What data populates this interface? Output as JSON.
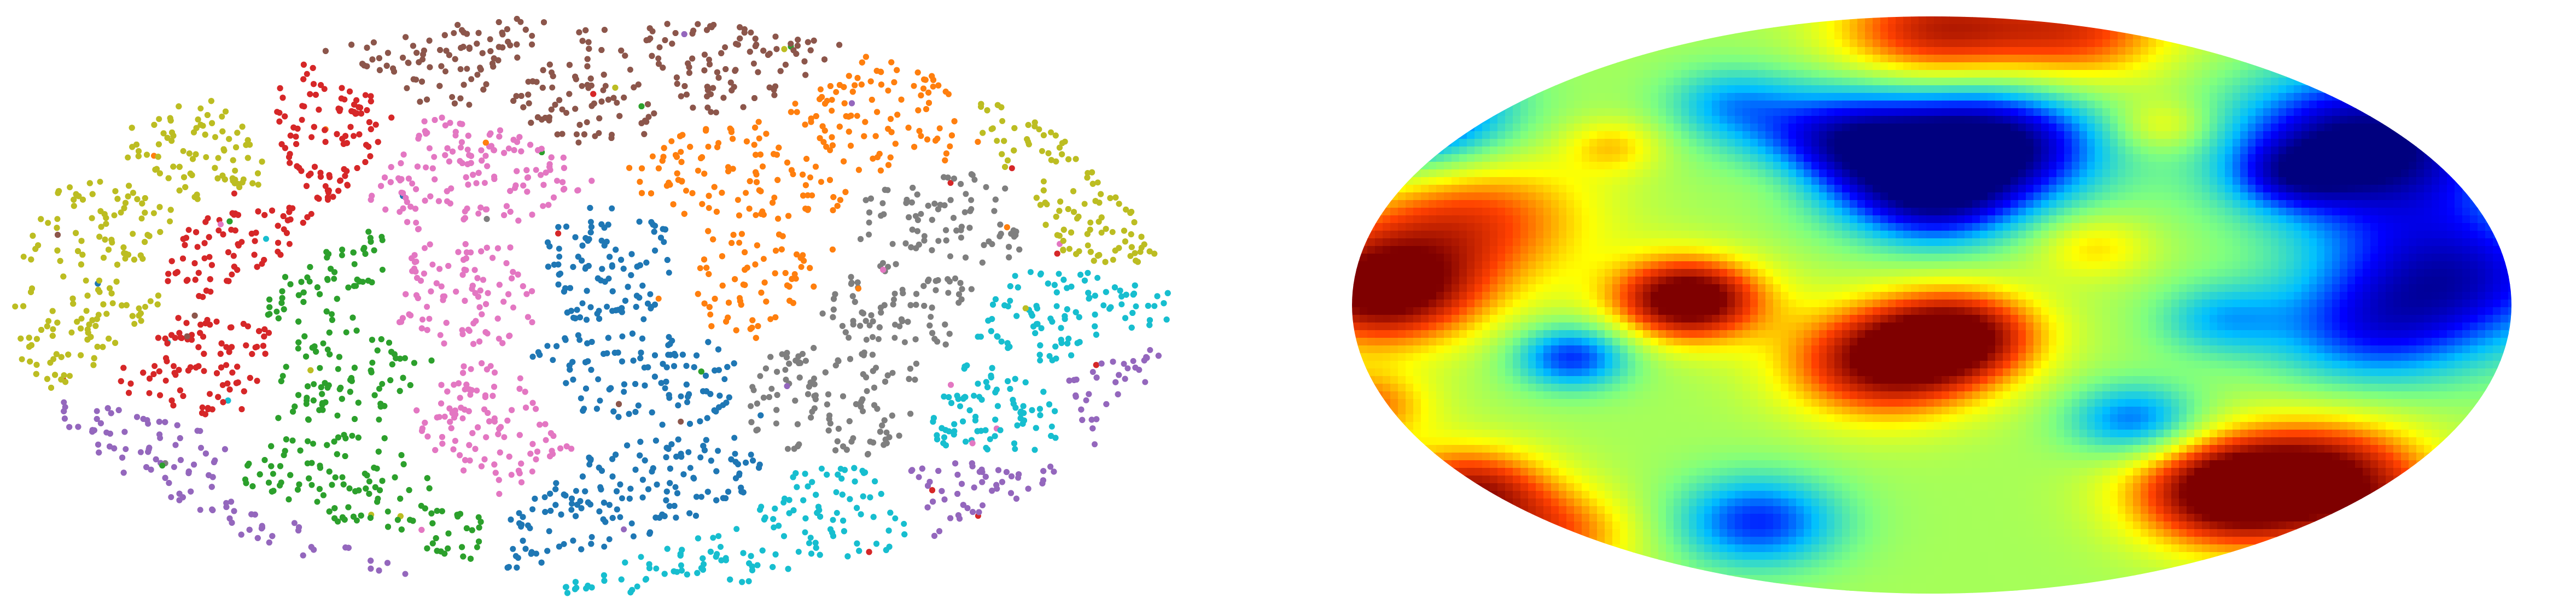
{
  "panels": [
    {
      "id": "left",
      "kind": "scatter-partition",
      "projection": "mollweide",
      "region_colors": [
        "#bcbd22",
        "#d62728",
        "#8c564b",
        "#ff7f0e",
        "#e377c2",
        "#2ca02c",
        "#1f77b4",
        "#7f7f7f",
        "#17becf",
        "#9467bd"
      ]
    },
    {
      "id": "right",
      "kind": "heatmap",
      "projection": "mollweide",
      "colormap": "jet",
      "colormap_stops": [
        "#00007f",
        "#0000ff",
        "#00bfff",
        "#7fff7f",
        "#ffff00",
        "#ff4000",
        "#7f0000"
      ]
    }
  ]
}
